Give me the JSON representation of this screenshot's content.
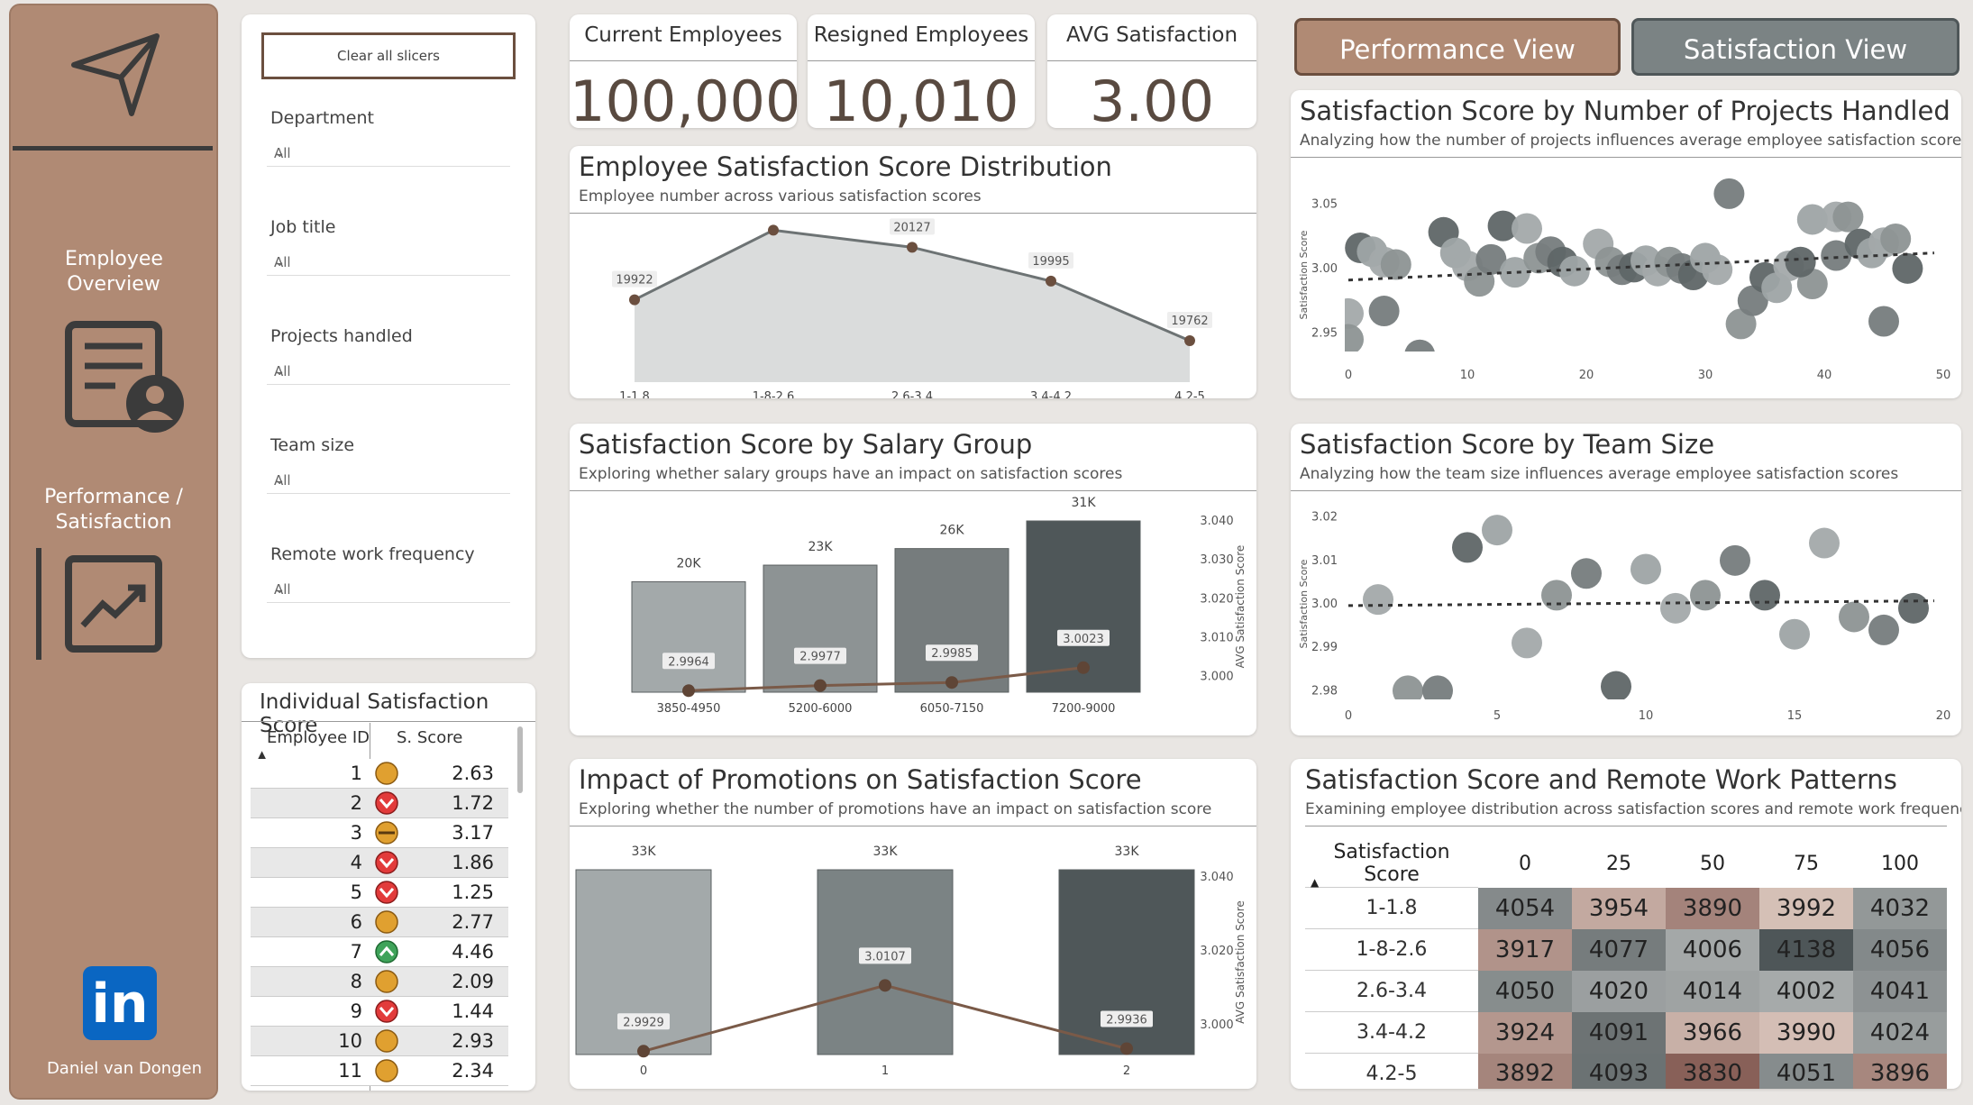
{
  "sidebar": {
    "nav1_label": "Employee Overview",
    "nav2_label": "Performance / Satisfaction",
    "linkedin_text": "in",
    "author": "Daniel van Dongen"
  },
  "slicers": {
    "clear_label": "Clear all slicers",
    "filters": [
      {
        "label": "Department",
        "value": "All"
      },
      {
        "label": "Job title",
        "value": "All"
      },
      {
        "label": "Projects handled",
        "value": "All"
      },
      {
        "label": "Team size",
        "value": "All"
      },
      {
        "label": "Remote work frequency",
        "value": "All"
      }
    ]
  },
  "kpis": [
    {
      "title": "Current Employees",
      "value": "100,000"
    },
    {
      "title": "Resigned Employees",
      "value": "10,010"
    },
    {
      "title": "AVG Satisfaction",
      "value": "3.00"
    }
  ],
  "views": {
    "performance": "Performance View",
    "satisfaction": "Satisfaction View"
  },
  "individual": {
    "title": "Individual Satisfaction Score",
    "col_id": "Employee ID",
    "col_score": "S. Score",
    "rows": [
      {
        "id": "1",
        "score": "2.63",
        "icon": "neutral"
      },
      {
        "id": "2",
        "score": "1.72",
        "icon": "down"
      },
      {
        "id": "3",
        "score": "3.17",
        "icon": "flat"
      },
      {
        "id": "4",
        "score": "1.86",
        "icon": "down"
      },
      {
        "id": "5",
        "score": "1.25",
        "icon": "down"
      },
      {
        "id": "6",
        "score": "2.77",
        "icon": "neutral"
      },
      {
        "id": "7",
        "score": "4.46",
        "icon": "up"
      },
      {
        "id": "8",
        "score": "2.09",
        "icon": "neutral"
      },
      {
        "id": "9",
        "score": "1.44",
        "icon": "down"
      },
      {
        "id": "10",
        "score": "2.93",
        "icon": "neutral"
      },
      {
        "id": "11",
        "score": "2.34",
        "icon": "neutral"
      }
    ]
  },
  "colors": {
    "accent": "#b08a74",
    "dark": "#4f5759",
    "mid": "#7b8384",
    "light": "#a3a9aa",
    "line": "#6b4f3f"
  },
  "chart_data": [
    {
      "type": "area",
      "title": "Employee Satisfaction Score Distribution",
      "subtitle": "Employee number across various satisfaction scores",
      "categories": [
        "1-1.8",
        "1-8-2.6",
        "2.6-3.4",
        "3.4-4.2",
        "4.2-5"
      ],
      "values": [
        19922,
        20194,
        20127,
        19995,
        19762
      ],
      "data_labels": [
        "19922",
        "20194",
        "20127",
        "19995",
        "19762"
      ],
      "ylim": [
        19600,
        20220
      ]
    },
    {
      "type": "bar",
      "title": "Satisfaction Score by Salary Group",
      "subtitle": "Exploring whether salary groups have an impact on satisfaction scores",
      "categories": [
        "3850-4950",
        "5200-6000",
        "6050-7150",
        "7200-9000"
      ],
      "bar_values": [
        20000,
        23000,
        26000,
        31000
      ],
      "bar_labels": [
        "20K",
        "23K",
        "26K",
        "31K"
      ],
      "line_values": [
        2.9964,
        2.9977,
        2.9985,
        3.0023
      ],
      "line_labels": [
        "2.9964",
        "2.9977",
        "2.9985",
        "3.0023"
      ],
      "y2label": "AVG Satisfaction Score",
      "y2lim": [
        2.996,
        3.04
      ],
      "y2ticks": [
        "3.040",
        "3.030",
        "3.020",
        "3.010",
        "3.000"
      ]
    },
    {
      "type": "bar",
      "title": "Impact of Promotions on Satisfaction Score",
      "subtitle": "Exploring whether the number of promotions have an impact on satisfaction score",
      "categories": [
        "0",
        "1",
        "2"
      ],
      "bar_values": [
        33000,
        33000,
        33000
      ],
      "bar_labels": [
        "33K",
        "33K",
        "33K"
      ],
      "line_values": [
        2.9929,
        3.0107,
        2.9936
      ],
      "line_labels": [
        "2.9929",
        "3.0107",
        "2.9936"
      ],
      "y2label": "AVG Satisfaction Score",
      "y2lim": [
        2.992,
        3.042
      ],
      "y2ticks": [
        "3.040",
        "3.020",
        "3.000"
      ]
    },
    {
      "type": "scatter",
      "title": "Satisfaction Score by Number of Projects Handled",
      "subtitle": "Analyzing how the number of projects influences average employee satisfaction scores",
      "ylabel": "Satisfaction Score",
      "xlim": [
        0,
        50
      ],
      "ylim": [
        2.93,
        3.06
      ],
      "xticks": [
        "0",
        "10",
        "20",
        "30",
        "40",
        "50"
      ],
      "yticks": [
        "3.05",
        "3.00",
        "2.95"
      ],
      "trend": [
        2.991,
        3.012
      ],
      "points": [
        [
          0,
          2.965
        ],
        [
          0,
          2.945
        ],
        [
          3,
          2.967
        ],
        [
          1,
          3.016
        ],
        [
          2,
          3.013
        ],
        [
          3,
          3.005
        ],
        [
          4,
          3.003
        ],
        [
          6,
          2.933
        ],
        [
          8,
          3.028
        ],
        [
          9,
          3.012
        ],
        [
          10,
          3.002
        ],
        [
          11,
          2.99
        ],
        [
          12,
          3.007
        ],
        [
          13,
          3.033
        ],
        [
          14,
          2.997
        ],
        [
          15,
          3.031
        ],
        [
          16,
          3.008
        ],
        [
          17,
          3.013
        ],
        [
          18,
          3.005
        ],
        [
          19,
          2.998
        ],
        [
          21,
          3.019
        ],
        [
          22,
          3.005
        ],
        [
          23,
          2.999
        ],
        [
          24,
          3.001
        ],
        [
          25,
          3.006
        ],
        [
          26,
          2.998
        ],
        [
          27,
          3.005
        ],
        [
          28,
          3.0
        ],
        [
          29,
          2.995
        ],
        [
          30,
          3.008
        ],
        [
          31,
          2.999
        ],
        [
          33,
          2.957
        ],
        [
          34,
          2.975
        ],
        [
          35,
          2.993
        ],
        [
          36,
          2.985
        ],
        [
          37,
          3.002
        ],
        [
          39,
          2.988
        ],
        [
          32,
          3.058
        ],
        [
          38,
          3.005
        ],
        [
          39,
          3.038
        ],
        [
          41,
          3.04
        ],
        [
          42,
          3.04
        ],
        [
          41,
          3.01
        ],
        [
          43,
          3.019
        ],
        [
          44,
          3.012
        ],
        [
          45,
          3.02
        ],
        [
          46,
          3.023
        ],
        [
          45,
          2.959
        ],
        [
          47,
          3.0
        ]
      ]
    },
    {
      "type": "scatter",
      "title": "Satisfaction Score by Team Size",
      "subtitle": "Analyzing how the team size influences average employee satisfaction scores",
      "ylabel": "Satisfaction Score",
      "xlim": [
        0,
        20
      ],
      "ylim": [
        2.978,
        3.022
      ],
      "xticks": [
        "0",
        "5",
        "10",
        "15",
        "20"
      ],
      "yticks": [
        "3.02",
        "3.01",
        "3.00",
        "2.99",
        "2.98"
      ],
      "trend": [
        2.9996,
        3.0007
      ],
      "points": [
        [
          1,
          3.001
        ],
        [
          2,
          2.98
        ],
        [
          3,
          2.98
        ],
        [
          4,
          3.013
        ],
        [
          5,
          3.017
        ],
        [
          6,
          2.991
        ],
        [
          7,
          3.002
        ],
        [
          8,
          3.007
        ],
        [
          9,
          2.981
        ],
        [
          10,
          3.008
        ],
        [
          11,
          2.999
        ],
        [
          12,
          3.002
        ],
        [
          13,
          3.01
        ],
        [
          14,
          3.002
        ],
        [
          15,
          2.993
        ],
        [
          16,
          3.014
        ],
        [
          17,
          2.997
        ],
        [
          18,
          2.994
        ],
        [
          19,
          2.999
        ]
      ]
    },
    {
      "type": "heatmap",
      "title": "Satisfaction Score and Remote Work Patterns",
      "subtitle": "Examining employee distribution across satisfaction scores and remote work frequency",
      "row_header": "Satisfaction Score",
      "columns": [
        "0",
        "25",
        "50",
        "75",
        "100"
      ],
      "rows": [
        "1-1.8",
        "1-8-2.6",
        "2.6-3.4",
        "3.4-4.2",
        "4.2-5"
      ],
      "values": [
        [
          4054,
          3954,
          3890,
          3992,
          4032
        ],
        [
          3917,
          4077,
          4006,
          4138,
          4056
        ],
        [
          4050,
          4020,
          4014,
          4002,
          4041
        ],
        [
          3924,
          4091,
          3966,
          3990,
          4024
        ],
        [
          3892,
          4093,
          3830,
          4051,
          3896
        ]
      ]
    }
  ]
}
